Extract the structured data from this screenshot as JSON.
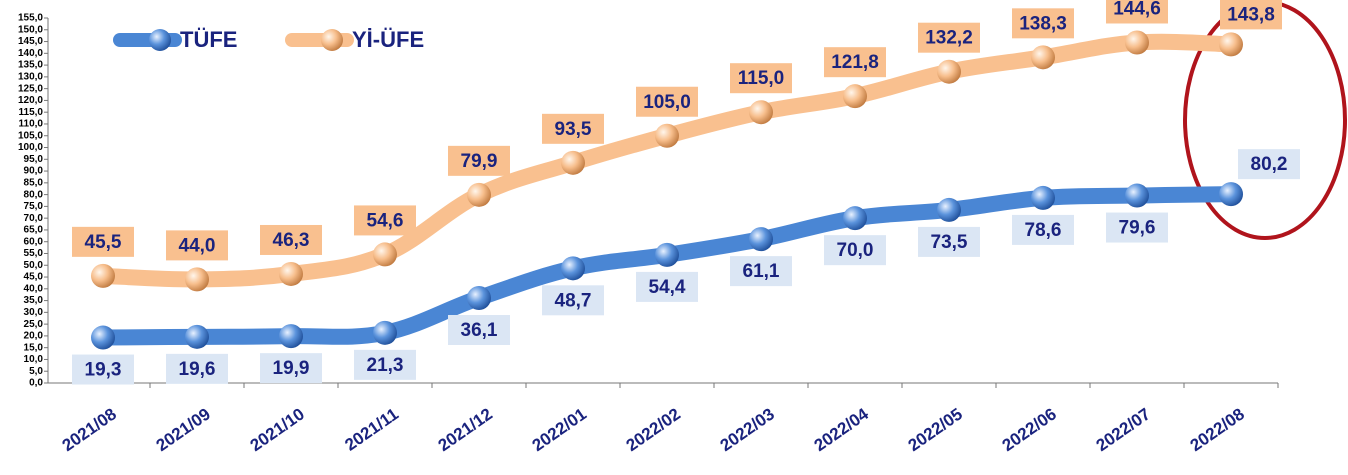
{
  "chart_data": {
    "type": "line",
    "categories": [
      "2021/08",
      "2021/09",
      "2021/10",
      "2021/11",
      "2021/12",
      "2022/01",
      "2022/02",
      "2022/03",
      "2022/04",
      "2022/05",
      "2022/06",
      "2022/07",
      "2022/08"
    ],
    "series": [
      {
        "name": "TÜFE",
        "color": "#4a86d4",
        "values": [
          19.3,
          19.6,
          19.9,
          21.3,
          36.1,
          48.7,
          54.4,
          61.1,
          70.0,
          73.5,
          78.6,
          79.6,
          80.2
        ],
        "value_labels": [
          "19,3",
          "19,6",
          "19,9",
          "21,3",
          "36,1",
          "48,7",
          "54,4",
          "61,1",
          "70,0",
          "73,5",
          "78,6",
          "79,6",
          "80,2"
        ]
      },
      {
        "name": "Yİ-ÜFE",
        "color": "#f9c08f",
        "values": [
          45.5,
          44.0,
          46.3,
          54.6,
          79.9,
          93.5,
          105.0,
          115.0,
          121.8,
          132.2,
          138.3,
          144.6,
          143.8
        ],
        "value_labels": [
          "45,5",
          "44,0",
          "46,3",
          "54,6",
          "79,9",
          "93,5",
          "105,0",
          "115,0",
          "121,8",
          "132,2",
          "138,3",
          "144,6",
          "143,8"
        ]
      }
    ],
    "ylim": [
      0,
      155
    ],
    "yticks": [
      {
        "value": 0,
        "label": "0,0"
      },
      {
        "value": 5,
        "label": "5,0"
      },
      {
        "value": 10,
        "label": "10,0"
      },
      {
        "value": 15,
        "label": "15,0"
      },
      {
        "value": 20,
        "label": "20,0"
      },
      {
        "value": 25,
        "label": "25,0"
      },
      {
        "value": 30,
        "label": "30,0"
      },
      {
        "value": 35,
        "label": "35,0"
      },
      {
        "value": 40,
        "label": "40,0"
      },
      {
        "value": 45,
        "label": "45,0"
      },
      {
        "value": 50,
        "label": "50,0"
      },
      {
        "value": 55,
        "label": "55,0"
      },
      {
        "value": 60,
        "label": "60,0"
      },
      {
        "value": 65,
        "label": "65,0"
      },
      {
        "value": 70,
        "label": "70,0"
      },
      {
        "value": 75,
        "label": "75,0"
      },
      {
        "value": 80,
        "label": "80,0"
      },
      {
        "value": 85,
        "label": "85,0"
      },
      {
        "value": 90,
        "label": "90,0"
      },
      {
        "value": 95,
        "label": "95,0"
      },
      {
        "value": 100,
        "label": "100,0"
      },
      {
        "value": 105,
        "label": "105,0"
      },
      {
        "value": 110,
        "label": "110,0"
      },
      {
        "value": 115,
        "label": "115,0"
      },
      {
        "value": 120,
        "label": "120,0"
      },
      {
        "value": 125,
        "label": "125,0"
      },
      {
        "value": 130,
        "label": "130,0"
      },
      {
        "value": 135,
        "label": "135,0"
      },
      {
        "value": 140,
        "label": "140,0"
      },
      {
        "value": 145,
        "label": "145,0"
      },
      {
        "value": 150,
        "label": "150,0"
      },
      {
        "value": 155,
        "label": "155,0"
      }
    ],
    "legend": "top-left"
  }
}
